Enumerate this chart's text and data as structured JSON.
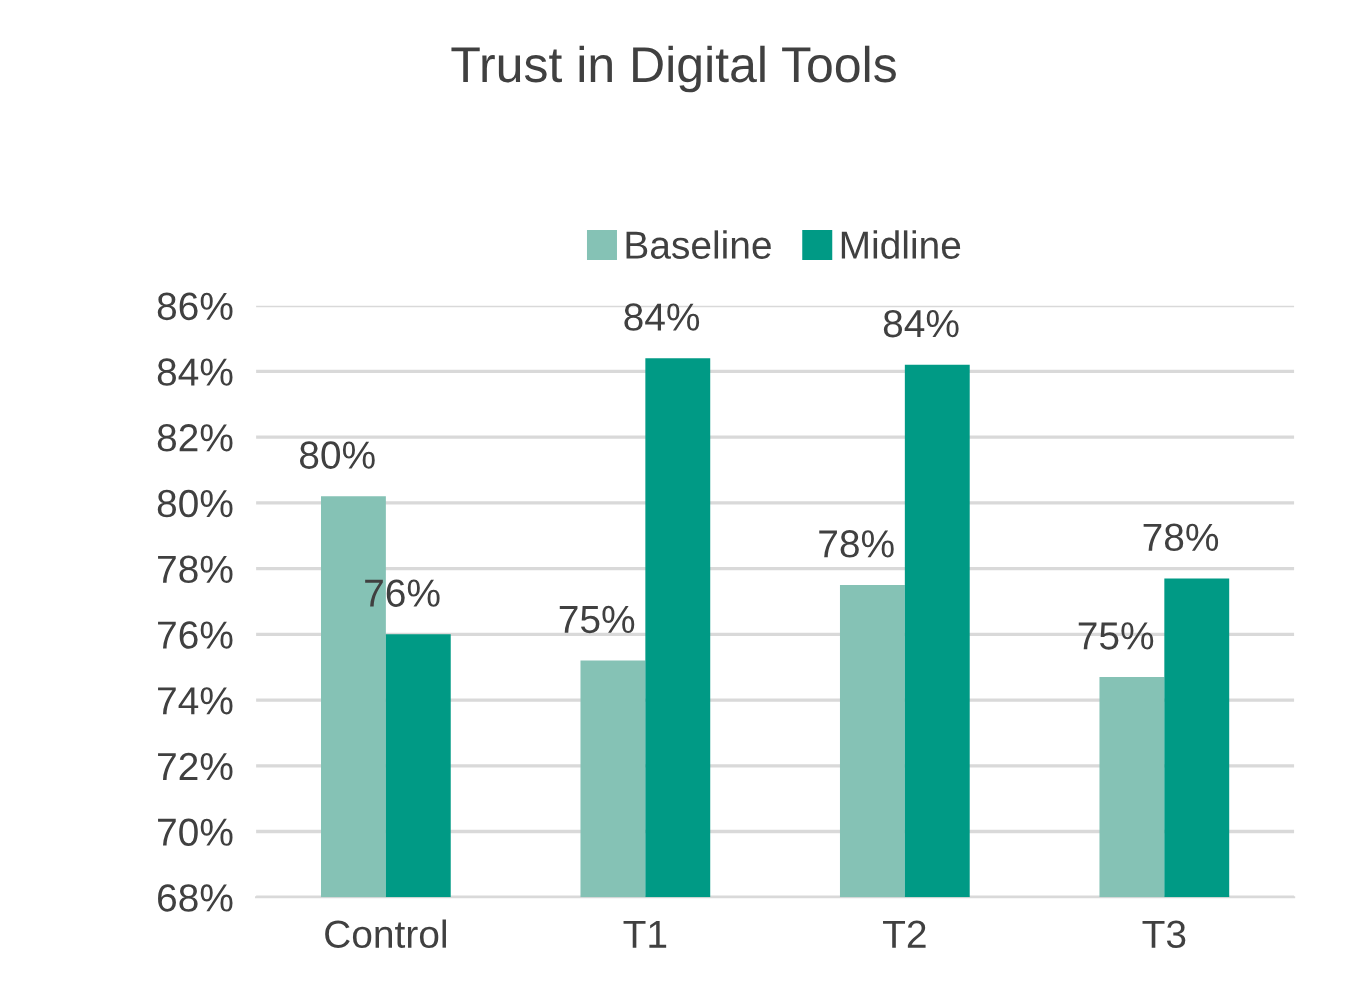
{
  "chart_data": {
    "type": "bar",
    "title": "Trust in Digital Tools",
    "categories": [
      "Control",
      "T1",
      "T2",
      "T3"
    ],
    "series": [
      {
        "name": "Baseline",
        "color": "#85c2b5",
        "values": [
          80.2,
          75.2,
          77.5,
          74.7
        ],
        "value_labels": [
          "80%",
          "75%",
          "78%",
          "75%"
        ]
      },
      {
        "name": "Midline",
        "color": "#009a85",
        "values": [
          76.0,
          84.4,
          84.2,
          77.7
        ],
        "value_labels": [
          "76%",
          "84%",
          "84%",
          "78%"
        ]
      }
    ],
    "ylim": [
      68,
      86
    ],
    "yticks": [
      {
        "value": 68,
        "label": "68%"
      },
      {
        "value": 70,
        "label": "70%"
      },
      {
        "value": 72,
        "label": "72%"
      },
      {
        "value": 74,
        "label": "74%"
      },
      {
        "value": 76,
        "label": "76%"
      },
      {
        "value": 78,
        "label": "78%"
      },
      {
        "value": 80,
        "label": "80%"
      },
      {
        "value": 82,
        "label": "82%"
      },
      {
        "value": 84,
        "label": "84%"
      },
      {
        "value": 86,
        "label": "86%"
      }
    ],
    "grid": "y",
    "legend": "top"
  }
}
